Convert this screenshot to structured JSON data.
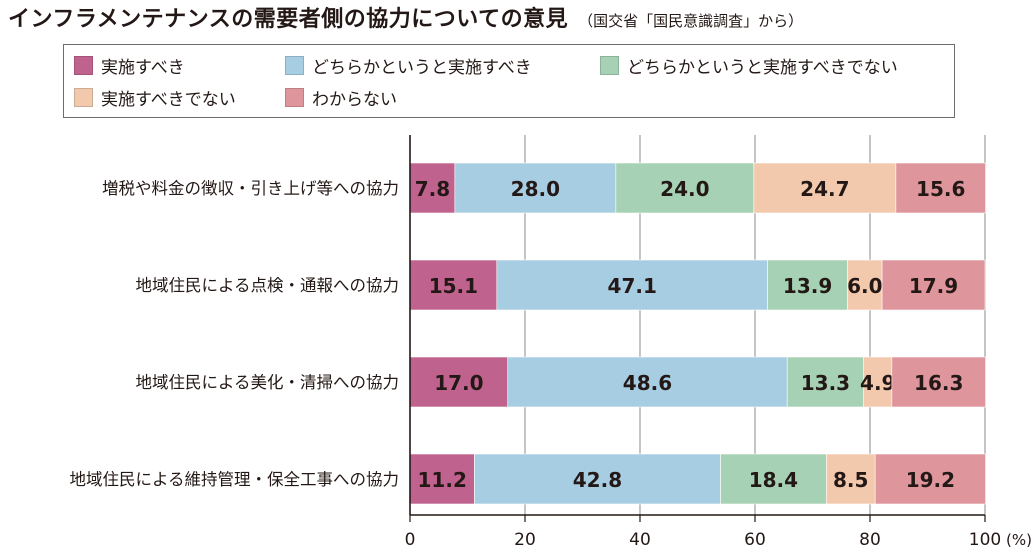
{
  "title": {
    "main": "インフラメンテナンスの需要者側の協力についての意見",
    "sub": "（国交省「国民意識調査」から）"
  },
  "colors": {
    "series": [
      "#c0628e",
      "#a7cde3",
      "#a6d1b4",
      "#f2c9ad",
      "#de959c"
    ],
    "axis": "#231815",
    "grid": "#9e9e9e"
  },
  "chart_data": {
    "type": "bar",
    "orientation": "horizontal",
    "stacked": true,
    "title": "インフラメンテナンスの需要者側の協力についての意見",
    "categories": [
      "増税や料金の徴収・引き上げ等への協力",
      "地域住民による点検・通報への協力",
      "地域住民による美化・清掃への協力",
      "地域住民による維持管理・保全工事への協力"
    ],
    "series": [
      {
        "name": "実施すべき",
        "values": [
          7.8,
          15.1,
          17.0,
          11.2
        ]
      },
      {
        "name": "どちらかというと実施すべき",
        "values": [
          28.0,
          47.1,
          48.6,
          42.8
        ]
      },
      {
        "name": "どちらかというと実施すべきでない",
        "values": [
          24.0,
          13.9,
          13.3,
          18.4
        ]
      },
      {
        "name": "実施すべきでない",
        "values": [
          24.7,
          6.0,
          4.9,
          8.5
        ]
      },
      {
        "name": "わからない",
        "values": [
          15.6,
          17.9,
          16.3,
          19.2
        ]
      }
    ],
    "xlim": [
      0,
      100
    ],
    "xticks": [
      "0",
      "20",
      "40",
      "60",
      "80",
      "100"
    ],
    "xunit": "(%)",
    "grid": true,
    "legend": "top"
  }
}
